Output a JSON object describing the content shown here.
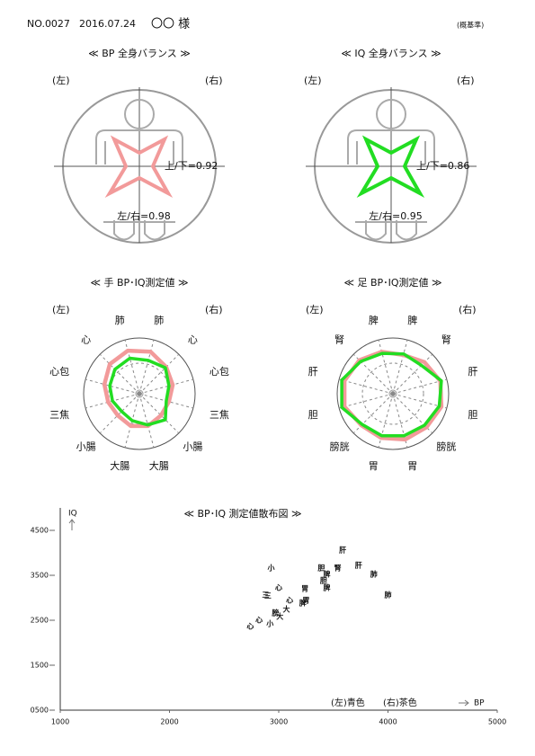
{
  "header": {
    "number": "NO.0027",
    "date": "2016.07.24",
    "name": "〇〇 様",
    "note": "(概基準)"
  },
  "chart_data": [
    {
      "type": "balance",
      "title": "≪ BP 全身バランス ≫",
      "left_label": "(左)",
      "right_label": "(右)",
      "color": "#f29a9a",
      "annotations": [
        "上/下=0.92",
        "左/右=0.98"
      ]
    },
    {
      "type": "balance",
      "title": "≪ IQ 全身バランス ≫",
      "left_label": "(左)",
      "right_label": "(右)",
      "color": "#22dd22",
      "annotations": [
        "上/下=0.86",
        "左/右=0.95"
      ]
    },
    {
      "type": "radar",
      "title": "≪ 手 BP･IQ測定値 ≫",
      "left_label": "(左)",
      "right_label": "(右)",
      "categories": [
        "肺",
        "心",
        "心包",
        "三焦",
        "小腸",
        "大腸",
        "大腸",
        "小腸",
        "三焦",
        "心包",
        "心",
        "肺"
      ],
      "category_colors": [
        "#1a1a9a",
        "#1a1a9a",
        "#1a1a9a",
        "#7a1010",
        "#7a1010",
        "#7a1010",
        "#7a1010",
        "#7a1010",
        "#7a1010",
        "#1a1a9a",
        "#1a1a9a",
        "#1a1a9a"
      ],
      "rlim": [
        0,
        1
      ],
      "series": [
        {
          "color": "#f29a9a",
          "values": [
            0.78,
            0.68,
            0.62,
            0.55,
            0.55,
            0.6,
            0.6,
            0.55,
            0.58,
            0.65,
            0.75,
            0.8
          ]
        },
        {
          "color": "#22dd22",
          "values": [
            0.62,
            0.66,
            0.55,
            0.5,
            0.66,
            0.58,
            0.5,
            0.45,
            0.5,
            0.55,
            0.62,
            0.66
          ]
        }
      ]
    },
    {
      "type": "radar",
      "title": "≪ 足 BP･IQ測定値 ≫",
      "left_label": "(左)",
      "right_label": "(右)",
      "categories": [
        "脾",
        "腎",
        "肝",
        "胆",
        "膀胱",
        "胃",
        "胃",
        "膀胱",
        "胆",
        "肝",
        "腎",
        "脾"
      ],
      "category_colors": [
        "#1a1a9a",
        "#1a1a9a",
        "#1a1a9a",
        "#7a1010",
        "#7a1010",
        "#7a1010",
        "#7a1010",
        "#7a1010",
        "#7a1010",
        "#1a1a9a",
        "#1a1a9a",
        "#1a1a9a"
      ],
      "rlim": [
        0,
        1
      ],
      "series": [
        {
          "color": "#f29a9a",
          "values": [
            0.72,
            0.8,
            0.88,
            0.9,
            0.85,
            0.85,
            0.82,
            0.8,
            0.9,
            0.9,
            0.85,
            0.78
          ]
        },
        {
          "color": "#22dd22",
          "values": [
            0.74,
            0.72,
            0.9,
            0.86,
            0.8,
            0.78,
            0.78,
            0.78,
            0.95,
            0.95,
            0.82,
            0.75
          ]
        }
      ]
    },
    {
      "type": "scatter",
      "title": "≪ BP･IQ 測定値散布図 ≫",
      "xlabel": "BP",
      "ylabel": "IQ",
      "xlim": [
        1000,
        5000
      ],
      "xticks": [
        1000,
        2000,
        3000,
        4000,
        5000
      ],
      "ylim": [
        500,
        5000
      ],
      "yticks": [
        {
          "value": 500,
          "label": "0500"
        },
        1500,
        2500,
        3500,
        4500
      ],
      "series": [
        {
          "name": "(左)青色",
          "color": "#1a1a9a",
          "labels": [
            "肝",
            "腎",
            "肺",
            "脾",
            "胃",
            "脾",
            "三",
            "膀",
            "大",
            "心",
            "心",
            "小"
          ],
          "x": [
            3585,
            3540,
            3870,
            3440,
            3240,
            3220,
            2900,
            2970,
            3010,
            2740,
            2820,
            2920
          ],
          "values": [
            4060,
            3660,
            3520,
            3220,
            3200,
            2880,
            3040,
            2660,
            2580,
            2360,
            2500,
            2420
          ]
        },
        {
          "name": "(右)茶色",
          "color": "#7a1010",
          "labels": [
            "肝",
            "胆",
            "脾",
            "胆",
            "胃",
            "肺",
            "小",
            "心",
            "三",
            "心",
            "大"
          ],
          "x": [
            3730,
            3390,
            3440,
            3410,
            3250,
            4000,
            2930,
            3000,
            2880,
            3100,
            3070
          ],
          "values": [
            3720,
            3660,
            3520,
            3380,
            2940,
            3060,
            3660,
            3220,
            3060,
            2940,
            2740
          ]
        }
      ]
    }
  ]
}
